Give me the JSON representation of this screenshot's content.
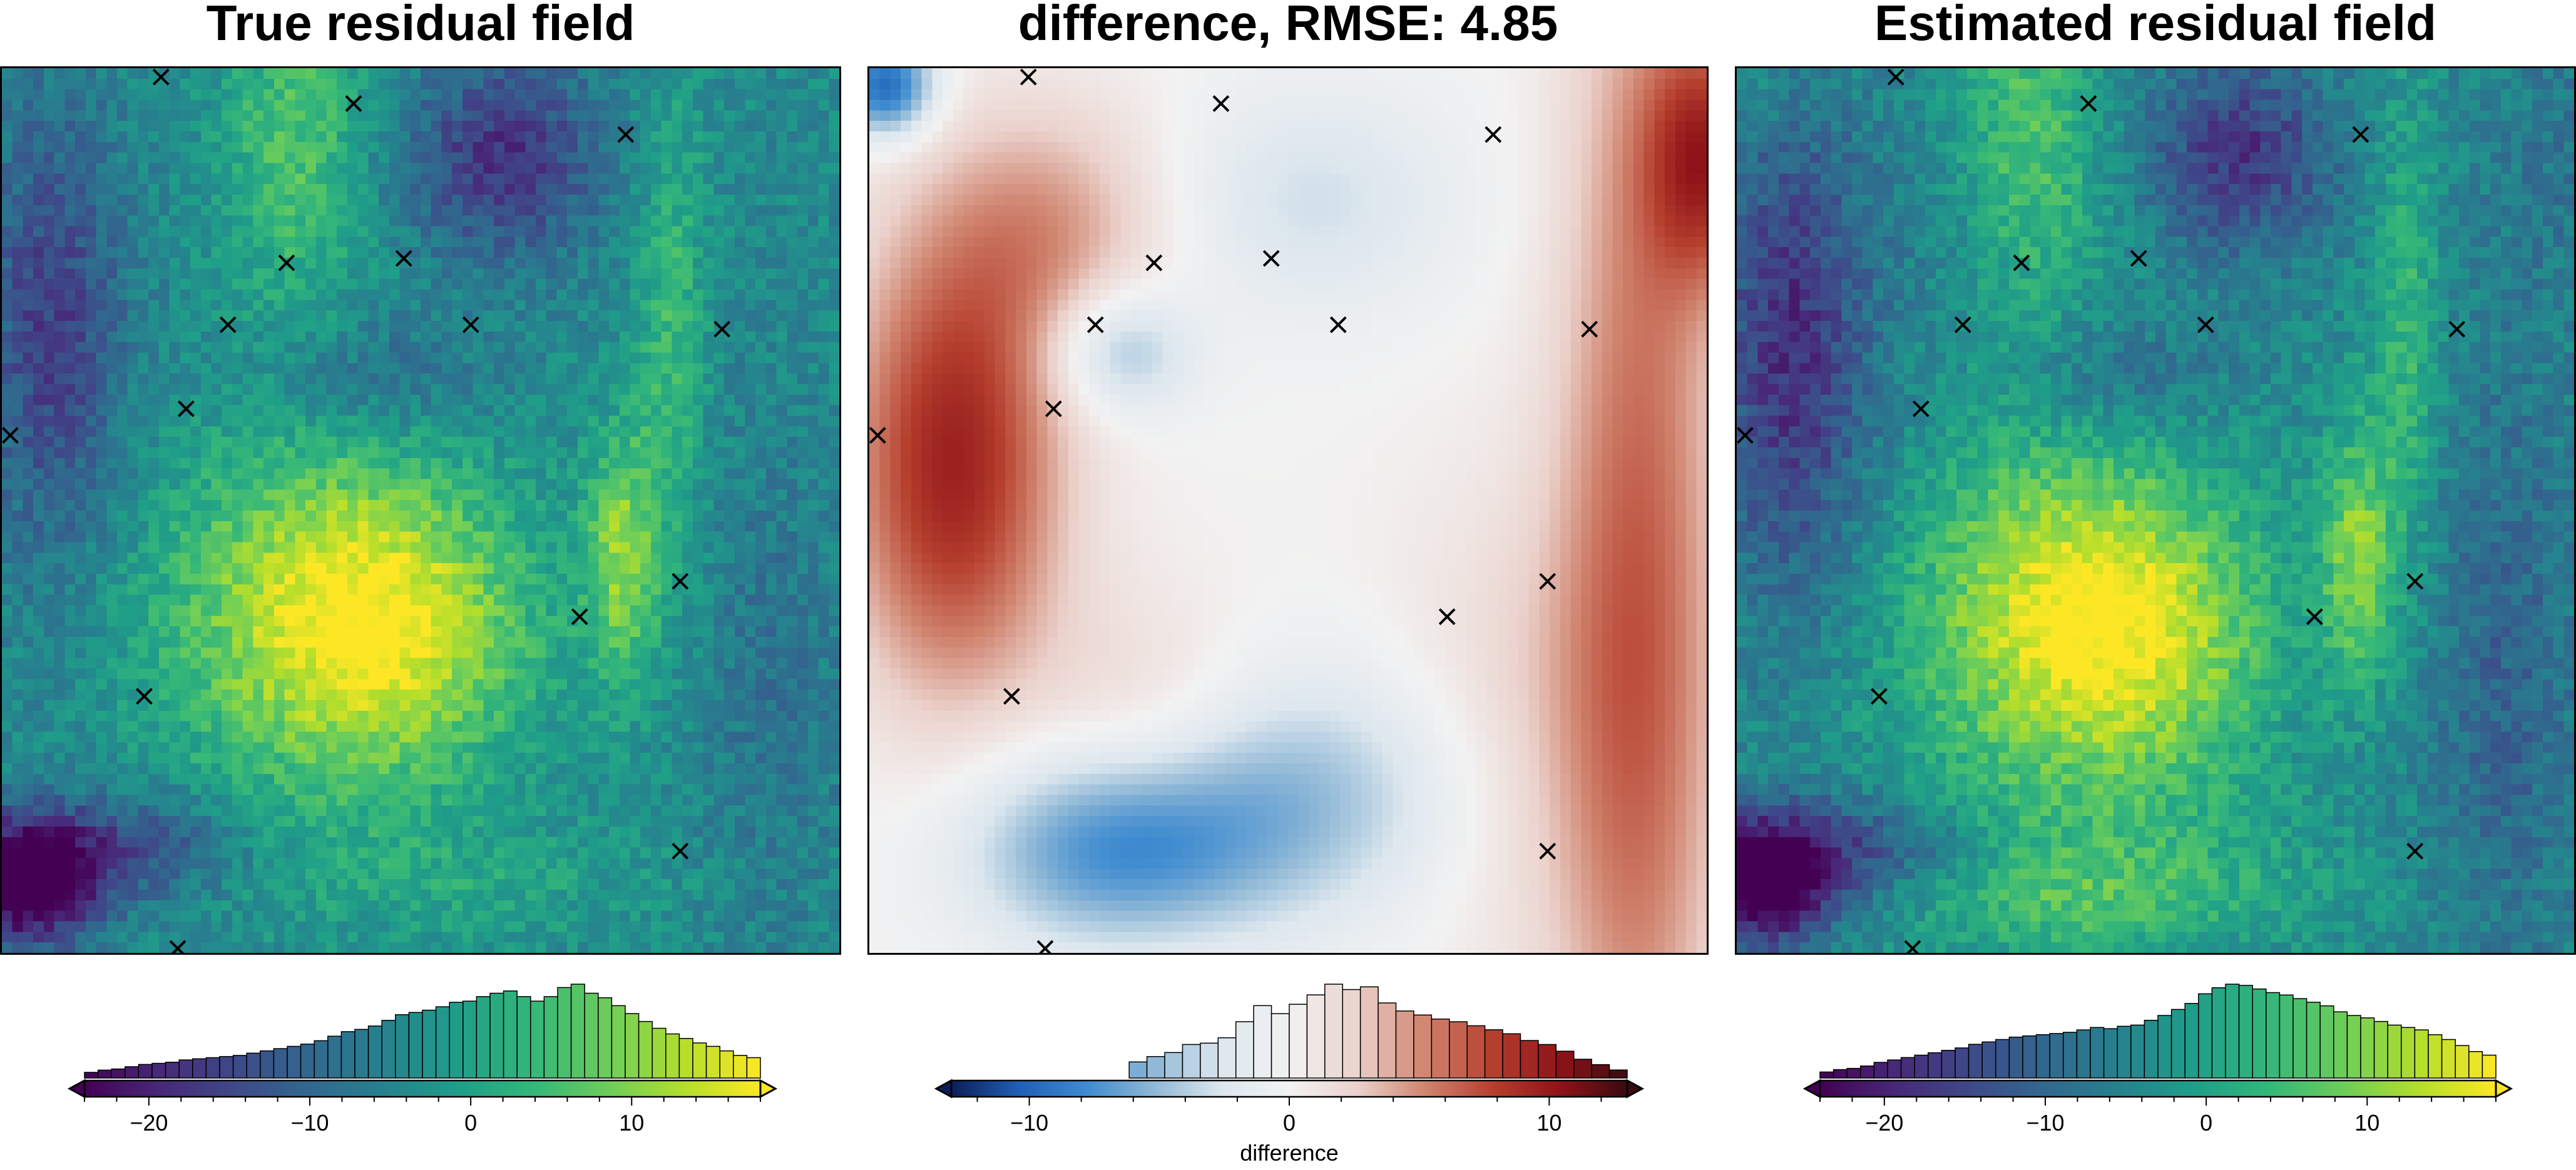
{
  "colors": {
    "grid_marker": "#000000",
    "background": "#ffffff",
    "viridis": [
      "#440154",
      "#482878",
      "#3e4989",
      "#31688e",
      "#26828e",
      "#1f9e89",
      "#35b779",
      "#6ece58",
      "#b5de2b",
      "#fde725"
    ],
    "diverging": [
      "#0b1e5a",
      "#1f5fb5",
      "#3e8bd0",
      "#8fb8d6",
      "#dde7ee",
      "#f2f2f2",
      "#ebd2cc",
      "#d08570",
      "#b6402e",
      "#8e1318",
      "#3a0a10"
    ]
  },
  "stations": [
    [
      0.19,
      0.99
    ],
    [
      0.42,
      0.96
    ],
    [
      0.745,
      0.925
    ],
    [
      0.34,
      0.78
    ],
    [
      0.48,
      0.785
    ],
    [
      0.56,
      0.71
    ],
    [
      0.27,
      0.71
    ],
    [
      0.86,
      0.705
    ],
    [
      0.22,
      0.615
    ],
    [
      0.01,
      0.585
    ],
    [
      0.81,
      0.42
    ],
    [
      0.69,
      0.38
    ],
    [
      0.17,
      0.29
    ],
    [
      0.81,
      0.115
    ],
    [
      0.21,
      0.005
    ]
  ],
  "chart_data": [
    {
      "type": "heatmap",
      "title": "True residual field",
      "field": "true_residual",
      "colormap": "viridis",
      "clim": [
        -24,
        18
      ],
      "colorbar": {
        "ticks": [
          -20,
          -10,
          0,
          10
        ],
        "tick_labels": [
          "−20",
          "−10",
          "0",
          "10"
        ],
        "label": "",
        "histogram": {
          "bins": 50,
          "counts": [
            5,
            7,
            8,
            10,
            12,
            13,
            14,
            16,
            17,
            18,
            19,
            20,
            22,
            24,
            26,
            28,
            30,
            33,
            37,
            41,
            43,
            46,
            51,
            56,
            58,
            60,
            63,
            67,
            68,
            72,
            75,
            77,
            72,
            68,
            72,
            80,
            83,
            75,
            71,
            64,
            57,
            50,
            44,
            39,
            35,
            31,
            28,
            24,
            20,
            18
          ]
        }
      },
      "markers": "stations"
    },
    {
      "type": "heatmap",
      "title": "difference, RMSE: 4.85",
      "field": "difference",
      "colormap": "diverging",
      "clim": [
        -13,
        13
      ],
      "rmse": 4.85,
      "colorbar": {
        "ticks": [
          -10,
          0,
          10
        ],
        "tick_labels": [
          "−10",
          "0",
          "10"
        ],
        "label": "difference",
        "histogram": {
          "bins": 38,
          "counts": [
            0,
            0,
            0,
            0,
            0,
            0,
            0,
            0,
            0,
            0,
            12,
            16,
            19,
            25,
            26,
            30,
            42,
            54,
            48,
            55,
            62,
            70,
            66,
            68,
            56,
            50,
            47,
            44,
            42,
            39,
            36,
            33,
            28,
            25,
            20,
            14,
            10,
            6
          ]
        }
      },
      "markers": "stations"
    },
    {
      "type": "heatmap",
      "title": "Estimated residual field",
      "field": "estimated_residual",
      "colormap": "viridis",
      "clim": [
        -24,
        18
      ],
      "colorbar": {
        "ticks": [
          -20,
          -10,
          0,
          10
        ],
        "tick_labels": [
          "−20",
          "−10",
          "0",
          "10"
        ],
        "label": "",
        "histogram": {
          "bins": 50,
          "counts": [
            5,
            7,
            8,
            10,
            13,
            15,
            17,
            19,
            21,
            23,
            25,
            28,
            30,
            32,
            34,
            35,
            36,
            37,
            38,
            40,
            42,
            41,
            43,
            44,
            48,
            52,
            57,
            62,
            70,
            75,
            78,
            77,
            74,
            71,
            69,
            66,
            63,
            60,
            55,
            52,
            50,
            47,
            44,
            42,
            40,
            36,
            32,
            27,
            22,
            19
          ]
        }
      },
      "markers": "stations"
    }
  ]
}
